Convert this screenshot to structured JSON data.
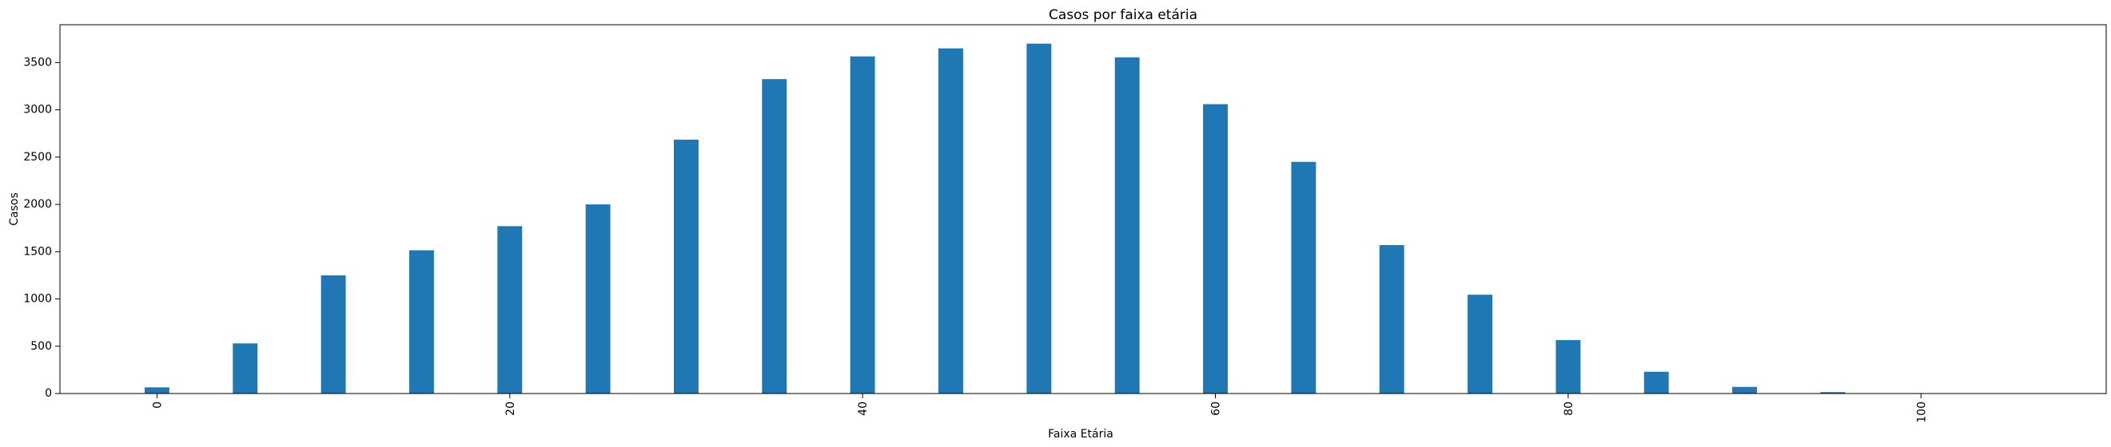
{
  "chart_data": {
    "type": "bar",
    "title": "Casos por faixa etária",
    "xlabel": "Faixa Etária",
    "ylabel": "Casos",
    "x": [
      0,
      5,
      10,
      15,
      20,
      25,
      30,
      35,
      40,
      45,
      50,
      55,
      60,
      65,
      70,
      75,
      80,
      85,
      90,
      95
    ],
    "values": [
      65,
      530,
      1250,
      1515,
      1770,
      2000,
      2685,
      3325,
      3565,
      3650,
      3700,
      3555,
      3060,
      2450,
      1570,
      1045,
      565,
      230,
      70,
      15
    ],
    "xlim": [
      -5.5,
      110.5
    ],
    "ylim": [
      0,
      3900
    ],
    "xticks": [
      "0",
      "20",
      "40",
      "60",
      "80",
      "100"
    ],
    "yticks": [
      "0",
      "500",
      "1000",
      "1500",
      "2000",
      "2500",
      "3000",
      "3500"
    ],
    "bar_color": "#1f77b4",
    "grid": false,
    "xtick_rotation": -90
  }
}
